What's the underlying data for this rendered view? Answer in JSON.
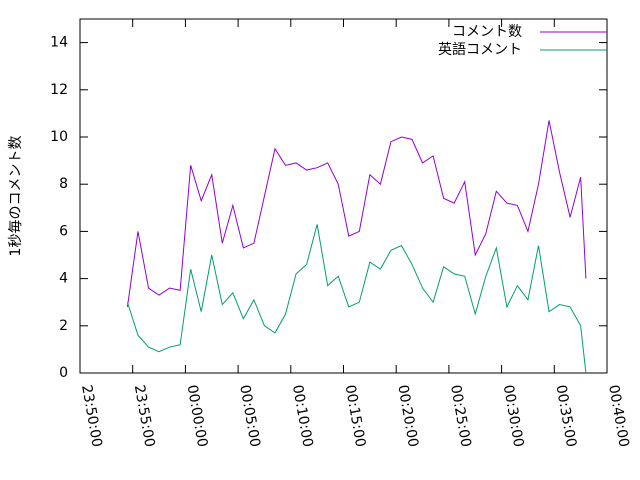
{
  "chart_data": {
    "type": "line",
    "y_label": "1秒毎のコメント数",
    "x": [
      "23:54:30",
      "23:55:30",
      "23:56:30",
      "23:57:30",
      "23:58:30",
      "23:59:30",
      "00:00:30",
      "00:01:30",
      "00:02:30",
      "00:03:30",
      "00:04:30",
      "00:05:30",
      "00:06:30",
      "00:07:30",
      "00:08:30",
      "00:09:30",
      "00:10:30",
      "00:11:30",
      "00:12:30",
      "00:13:30",
      "00:14:30",
      "00:15:30",
      "00:16:30",
      "00:17:30",
      "00:18:30",
      "00:19:30",
      "00:20:30",
      "00:21:30",
      "00:22:30",
      "00:23:30",
      "00:24:30",
      "00:25:30",
      "00:26:30",
      "00:27:30",
      "00:28:30",
      "00:29:30",
      "00:30:30",
      "00:31:30",
      "00:32:30",
      "00:33:30",
      "00:34:30",
      "00:35:30",
      "00:36:30",
      "00:37:30",
      "00:38:00"
    ],
    "series": [
      {
        "name": "コメント数",
        "color": "#9400d3",
        "values": [
          2.8,
          6.0,
          3.6,
          3.3,
          3.6,
          3.5,
          8.8,
          7.3,
          8.4,
          5.5,
          7.1,
          5.3,
          5.5,
          7.5,
          9.5,
          8.8,
          8.9,
          8.6,
          8.7,
          8.9,
          8.0,
          5.8,
          6.0,
          8.4,
          8.0,
          9.8,
          10.0,
          9.9,
          8.9,
          9.2,
          7.4,
          7.2,
          8.1,
          5.0,
          5.9,
          7.7,
          7.2,
          7.1,
          6.0,
          8.0,
          10.7,
          8.5,
          6.6,
          8.3,
          4.0
        ]
      },
      {
        "name": "英語コメント",
        "color": "#009e73",
        "values": [
          3.0,
          1.6,
          1.1,
          0.9,
          1.1,
          1.2,
          4.4,
          2.6,
          5.0,
          2.9,
          3.4,
          2.3,
          3.1,
          2.0,
          1.7,
          2.5,
          4.2,
          4.6,
          6.3,
          3.7,
          4.1,
          2.8,
          3.0,
          4.7,
          4.4,
          5.2,
          5.4,
          4.6,
          3.6,
          3.0,
          4.5,
          4.2,
          4.1,
          2.5,
          4.1,
          5.3,
          2.8,
          3.7,
          3.1,
          5.4,
          2.6,
          2.9,
          2.8,
          2.0,
          0
        ]
      }
    ],
    "xlim": [
      "23:50:00",
      "00:40:00"
    ],
    "xticks": [
      "23:50:00",
      "23:55:00",
      "00:00:00",
      "00:05:00",
      "00:10:00",
      "00:15:00",
      "00:20:00",
      "00:25:00",
      "00:30:00",
      "00:35:00",
      "00:40:00"
    ],
    "ylim": [
      0,
      15
    ],
    "yticks": [
      0,
      2,
      4,
      6,
      8,
      10,
      12,
      14
    ],
    "grid": false,
    "legend": "top-right"
  }
}
